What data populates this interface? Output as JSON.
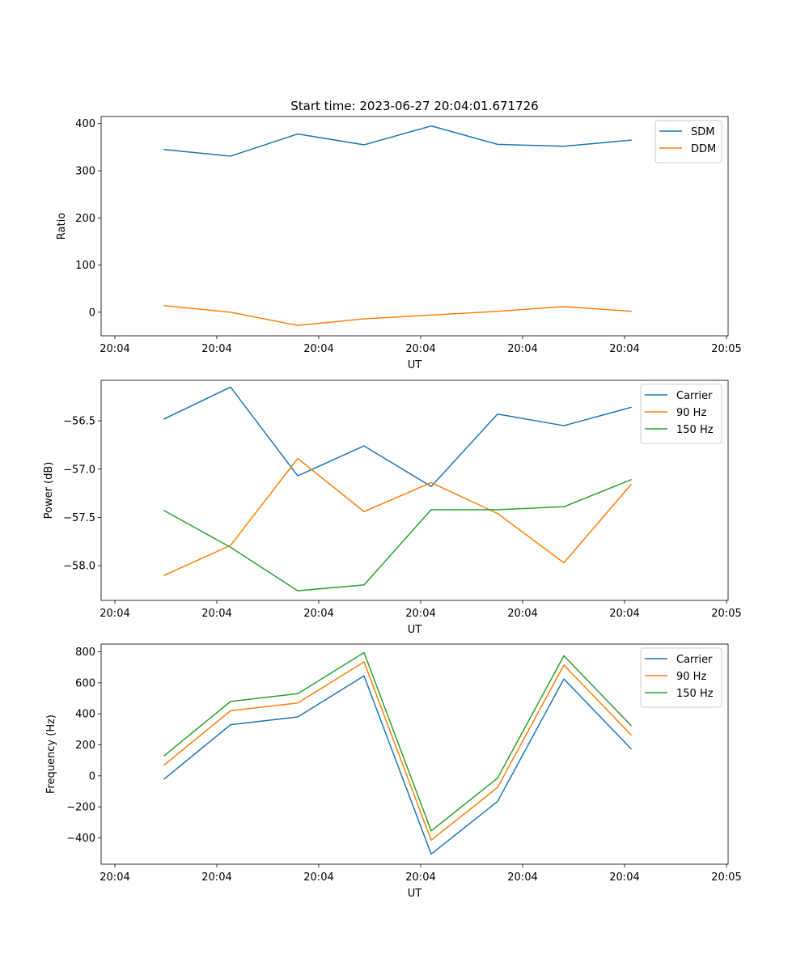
{
  "figure": {
    "title": "Start time: 2023-06-27 20:04:01.671726"
  },
  "chart_data": [
    {
      "type": "line",
      "xlabel": "UT",
      "ylabel": "Ratio",
      "x_tick_labels": [
        "20:04",
        "20:04",
        "20:04",
        "20:04",
        "20:04",
        "20:04",
        "20:05"
      ],
      "ylim": [
        -50,
        415
      ],
      "yticks": [
        0,
        100,
        200,
        300,
        400
      ],
      "ytick_labels": [
        "0",
        "100",
        "200",
        "300",
        "400"
      ],
      "grid": false,
      "legend_position": "top-right",
      "series": [
        {
          "name": "SDM",
          "color": "#1f77b4",
          "values": [
            345,
            331,
            378,
            355,
            395,
            356,
            352,
            365
          ]
        },
        {
          "name": "DDM",
          "color": "#ff7f0e",
          "values": [
            14,
            0,
            -28,
            -14,
            -6,
            2,
            12,
            2
          ]
        }
      ]
    },
    {
      "type": "line",
      "xlabel": "UT",
      "ylabel": "Power (dB)",
      "x_tick_labels": [
        "20:04",
        "20:04",
        "20:04",
        "20:04",
        "20:04",
        "20:04",
        "20:05"
      ],
      "ylim": [
        -58.36,
        -56.08
      ],
      "yticks": [
        -58.0,
        -57.5,
        -57.0,
        -56.5
      ],
      "ytick_labels": [
        "−58.0",
        "−57.5",
        "−57.0",
        "−56.5"
      ],
      "grid": false,
      "legend_position": "top-right",
      "series": [
        {
          "name": "Carrier",
          "color": "#1f77b4",
          "values": [
            -56.48,
            -56.15,
            -57.07,
            -56.76,
            -57.18,
            -56.43,
            -56.55,
            -56.36
          ]
        },
        {
          "name": "90 Hz",
          "color": "#ff7f0e",
          "values": [
            -58.1,
            -57.79,
            -56.89,
            -57.44,
            -57.14,
            -57.46,
            -57.97,
            -57.16
          ]
        },
        {
          "name": "150 Hz",
          "color": "#2ca02c",
          "values": [
            -57.43,
            -57.81,
            -58.26,
            -58.2,
            -57.42,
            -57.42,
            -57.39,
            -57.11
          ]
        }
      ]
    },
    {
      "type": "line",
      "xlabel": "UT",
      "ylabel": "Frequency (Hz)",
      "x_tick_labels": [
        "20:04",
        "20:04",
        "20:04",
        "20:04",
        "20:04",
        "20:04",
        "20:05"
      ],
      "ylim": [
        -570,
        850
      ],
      "yticks": [
        -400,
        -200,
        0,
        200,
        400,
        600,
        800
      ],
      "ytick_labels": [
        "−400",
        "−200",
        "0",
        "200",
        "400",
        "600",
        "800"
      ],
      "grid": false,
      "legend_position": "top-right",
      "series": [
        {
          "name": "Carrier",
          "color": "#1f77b4",
          "values": [
            -20,
            330,
            380,
            645,
            -505,
            -165,
            625,
            175
          ]
        },
        {
          "name": "90 Hz",
          "color": "#ff7f0e",
          "values": [
            70,
            420,
            470,
            735,
            -415,
            -75,
            715,
            265
          ]
        },
        {
          "name": "150 Hz",
          "color": "#2ca02c",
          "values": [
            130,
            480,
            530,
            795,
            -355,
            -15,
            775,
            325
          ]
        }
      ]
    }
  ]
}
